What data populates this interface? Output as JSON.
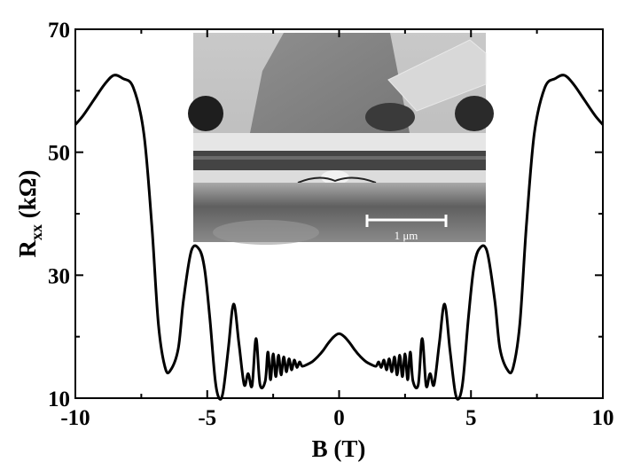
{
  "chart_data": {
    "type": "line",
    "title": "",
    "xlabel": "B (T)",
    "ylabel_main": "R",
    "ylabel_sub": "xx",
    "ylabel_unit": " (kΩ)",
    "xlim": [
      -10,
      10
    ],
    "ylim": [
      10,
      70
    ],
    "xticks": [
      -10,
      -5,
      0,
      5,
      10
    ],
    "yticks": [
      10,
      30,
      50,
      70
    ],
    "xtick_labels": [
      "-10",
      "-5",
      "0",
      "5",
      "10"
    ],
    "ytick_labels": [
      "10",
      "30",
      "50",
      "70"
    ],
    "grid": false,
    "symmetric": true,
    "series": [
      {
        "x": [
          0.0,
          0.2,
          0.4,
          0.6,
          0.8,
          1.0,
          1.2,
          1.4,
          1.5,
          1.6,
          1.7,
          1.8,
          1.9,
          2.0,
          2.1,
          2.2,
          2.3,
          2.4,
          2.5,
          2.6,
          2.7,
          2.8,
          3.0,
          3.15,
          3.3,
          3.45,
          3.6,
          3.8,
          4.0,
          4.2,
          4.4,
          4.55,
          4.7,
          4.9,
          5.1,
          5.3,
          5.6,
          5.9,
          6.1,
          6.4,
          6.6,
          6.85,
          7.1,
          7.4,
          7.8,
          8.2,
          8.55,
          8.9,
          9.3,
          9.7,
          10.0
        ],
        "y": [
          20.5,
          20.0,
          19.0,
          17.8,
          16.8,
          16.0,
          15.5,
          15.2,
          15.9,
          15.0,
          16.2,
          14.6,
          16.4,
          14.3,
          16.7,
          13.8,
          17.0,
          13.5,
          17.2,
          13.0,
          17.5,
          12.8,
          12.2,
          19.7,
          12.0,
          14.0,
          12.2,
          19.0,
          25.3,
          18.0,
          11.0,
          10.0,
          13.0,
          23.0,
          31.0,
          34.2,
          34.0,
          26.0,
          18.0,
          14.5,
          15.0,
          22.0,
          38.0,
          53.0,
          60.5,
          62.0,
          62.5,
          61.0,
          58.5,
          56.0,
          54.5
        ],
        "color": "#000000"
      }
    ],
    "inset": {
      "description_visible": "SEM micrograph",
      "scale_bar_label": "1 μm"
    }
  }
}
